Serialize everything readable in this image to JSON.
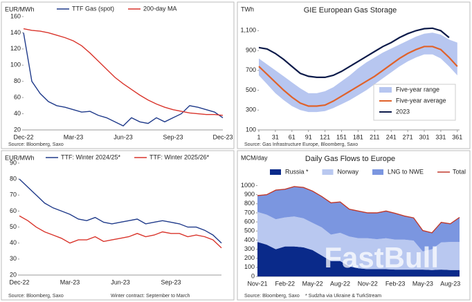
{
  "chart_data": [
    {
      "type": "line",
      "ylabel": "EUR/MWh",
      "source": "Source: Bloomberg, Saxo",
      "legend": "top",
      "categories": [
        "Dec-22",
        null,
        null,
        null,
        null,
        null,
        "Mar-23",
        null,
        null,
        null,
        null,
        null,
        "Jun-23",
        null,
        null,
        null,
        null,
        null,
        "Sep-23",
        null,
        null,
        null,
        null,
        null,
        "Dec-23"
      ],
      "ylim": [
        20,
        160
      ],
      "yticks": [
        20,
        40,
        60,
        80,
        100,
        120,
        140,
        160
      ],
      "series": [
        {
          "name": "TTF Gas (spot)",
          "color": "#1f3a8a",
          "values": [
            140,
            80,
            65,
            55,
            50,
            48,
            45,
            42,
            43,
            38,
            35,
            30,
            25,
            35,
            30,
            28,
            35,
            30,
            35,
            40,
            50,
            48,
            45,
            42,
            35
          ]
        },
        {
          "name": "200-day MA",
          "color": "#d9342b",
          "values": [
            145,
            143,
            142,
            140,
            137,
            134,
            130,
            124,
            115,
            105,
            95,
            85,
            77,
            70,
            63,
            57,
            52,
            48,
            45,
            43,
            41,
            40,
            39,
            39,
            38
          ]
        }
      ]
    },
    {
      "type": "line",
      "title": "GIE European Gas Storage",
      "ylabel": "TWh",
      "source": "Source: Gas Infrastructure Europe, Bloomberg, Saxo",
      "legend": "lower right",
      "x": [
        1,
        16,
        31,
        46,
        61,
        76,
        91,
        106,
        121,
        136,
        151,
        166,
        181,
        196,
        211,
        226,
        241,
        256,
        271,
        286,
        301,
        316,
        331,
        346,
        361
      ],
      "xlim": [
        1,
        365
      ],
      "xticks": [
        1,
        31,
        61,
        91,
        121,
        151,
        181,
        211,
        241,
        271,
        301,
        331,
        361
      ],
      "ylim": [
        100,
        1200
      ],
      "yticks": [
        100,
        300,
        500,
        700,
        900,
        {
          "value": 1100,
          "label": "1,100"
        }
      ],
      "series": [
        {
          "name": "Five-year range",
          "color": "#b7c6f0",
          "low": [
            650,
            560,
            470,
            400,
            340,
            300,
            280,
            280,
            290,
            320,
            360,
            400,
            450,
            500,
            560,
            620,
            680,
            740,
            790,
            830,
            860,
            860,
            820,
            740,
            650
          ],
          "high": [
            820,
            760,
            700,
            640,
            580,
            520,
            470,
            470,
            490,
            530,
            590,
            650,
            720,
            780,
            830,
            880,
            920,
            960,
            1000,
            1040,
            1070,
            1080,
            1060,
            1010,
            980
          ]
        },
        {
          "name": "Five-year average",
          "color": "#e0622a",
          "values": [
            740,
            660,
            580,
            500,
            430,
            370,
            340,
            340,
            350,
            390,
            440,
            490,
            540,
            590,
            640,
            700,
            760,
            820,
            870,
            910,
            940,
            940,
            910,
            830,
            740
          ]
        },
        {
          "name": "2023",
          "color": "#0d1b4a",
          "values": [
            930,
            915,
            870,
            810,
            740,
            670,
            640,
            630,
            630,
            650,
            690,
            740,
            790,
            840,
            890,
            940,
            980,
            1030,
            1070,
            1100,
            1120,
            1125,
            1100,
            1030,
            null
          ]
        }
      ]
    },
    {
      "type": "line",
      "ylabel": "EUR/MWh",
      "source": "Source: Bloomberg, Saxo",
      "note": "Winter contract: September to March",
      "legend": "top",
      "categories": [
        "Dec-22",
        null,
        null,
        null,
        null,
        null,
        "Mar-23",
        null,
        null,
        null,
        null,
        null,
        "Jun-23",
        null,
        null,
        null,
        null,
        null,
        "Sep-23",
        null,
        null,
        null,
        null,
        null,
        null
      ],
      "ylim": [
        20,
        90
      ],
      "yticks": [
        20,
        30,
        40,
        50,
        60,
        70,
        80,
        90
      ],
      "series": [
        {
          "name": "TTF: Winter 2024/25*",
          "color": "#1f3a8a",
          "values": [
            80,
            75,
            70,
            65,
            62,
            60,
            58,
            55,
            54,
            56,
            53,
            52,
            53,
            54,
            55,
            52,
            53,
            54,
            53,
            52,
            50,
            50,
            48,
            45,
            40
          ]
        },
        {
          "name": "TTF: Winter 2025/26*",
          "color": "#d9342b",
          "values": [
            57,
            54,
            50,
            47,
            45,
            43,
            40,
            42,
            42,
            44,
            41,
            42,
            43,
            44,
            46,
            44,
            45,
            47,
            46,
            46,
            44,
            45,
            44,
            42,
            37
          ]
        }
      ]
    },
    {
      "type": "area",
      "title": "Daily Gas Flows to Europe",
      "ylabel": "MCM/day",
      "source": "Source: Bloomberg, Saxo",
      "note": "* Sudzha via Ukraine & TurkStream",
      "watermark": "FastBull",
      "legend": "top",
      "stacked": true,
      "categories": [
        "Nov-21",
        null,
        null,
        "Feb-22",
        null,
        null,
        "May-22",
        null,
        null,
        "Aug-22",
        null,
        null,
        "Nov-22",
        null,
        null,
        "Feb-23",
        null,
        null,
        "May-23",
        null,
        null,
        "Aug-23",
        null
      ],
      "ylim": [
        0,
        1050
      ],
      "yticks": [
        0,
        100,
        200,
        300,
        400,
        500,
        600,
        700,
        800,
        900,
        1000
      ],
      "series": [
        {
          "name": "Russia *",
          "color": "#0a2a8a",
          "values": [
            380,
            350,
            300,
            330,
            330,
            320,
            290,
            230,
            170,
            170,
            110,
            90,
            80,
            80,
            80,
            75,
            75,
            75,
            75,
            70,
            75,
            70,
            70
          ]
        },
        {
          "name": "Norway",
          "color": "#b9c8f0",
          "values": [
            330,
            330,
            330,
            320,
            330,
            320,
            300,
            310,
            290,
            310,
            330,
            330,
            340,
            330,
            340,
            330,
            330,
            320,
            200,
            230,
            300,
            310,
            310
          ]
        },
        {
          "name": "LNG to NWE",
          "color": "#7b96e0",
          "values": [
            180,
            220,
            320,
            310,
            330,
            340,
            350,
            340,
            350,
            340,
            300,
            300,
            280,
            290,
            300,
            290,
            260,
            250,
            230,
            180,
            220,
            200,
            270
          ]
        },
        {
          "name": "Total",
          "color": "#c0392b",
          "kind": "line",
          "values": [
            890,
            900,
            950,
            960,
            990,
            980,
            940,
            880,
            810,
            820,
            740,
            720,
            700,
            700,
            720,
            695,
            665,
            645,
            505,
            480,
            595,
            580,
            650
          ]
        }
      ]
    }
  ]
}
